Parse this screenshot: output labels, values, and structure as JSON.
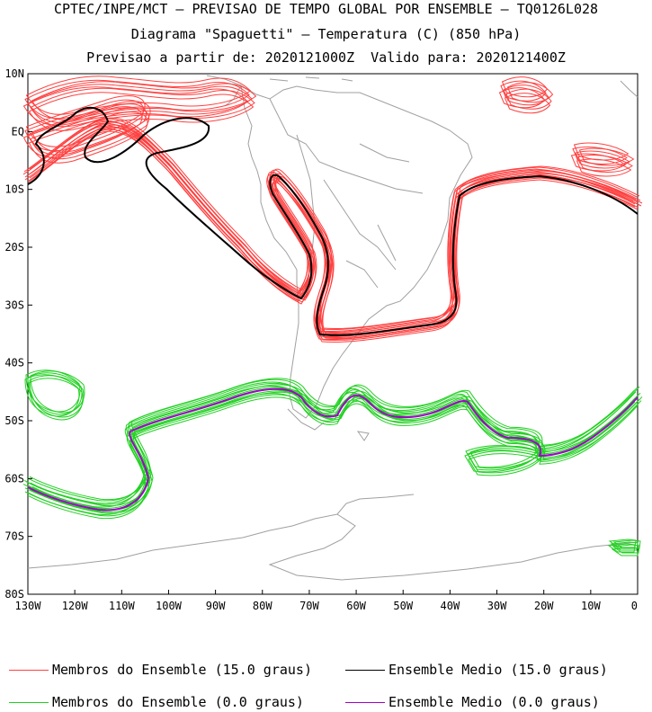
{
  "header": {
    "line1": "CPTEC/INPE/MCT – PREVISAO DE TEMPO GLOBAL POR ENSEMBLE – TQ0126L028",
    "line2": "Diagrama \"Spaguetti\" – Temperatura (C) (850 hPa)",
    "line3": "Previsao a partir de: 2020121000Z  Valido para: 2020121400Z"
  },
  "map": {
    "lat_labels": [
      "10N",
      "EQ",
      "10S",
      "20S",
      "30S",
      "40S",
      "50S",
      "60S",
      "70S",
      "80S"
    ],
    "lon_labels": [
      "130W",
      "120W",
      "110W",
      "100W",
      "90W",
      "80W",
      "70W",
      "60W",
      "50W",
      "40W",
      "30W",
      "20W",
      "10W",
      "0"
    ],
    "lat_range": [
      -80,
      10
    ],
    "lon_range": [
      -130,
      0
    ],
    "coast_color": "#a0a0a0"
  },
  "legend": {
    "items": [
      {
        "label": "Membros do Ensemble (15.0 graus)",
        "color": "#ff4040"
      },
      {
        "label": "Ensemble Medio (15.0 graus)",
        "color": "#000000"
      },
      {
        "label": "Membros do Ensemble (0.0 graus)",
        "color": "#20d020"
      },
      {
        "label": "Ensemble Medio (0.0 graus)",
        "color": "#a000c8"
      }
    ]
  }
}
